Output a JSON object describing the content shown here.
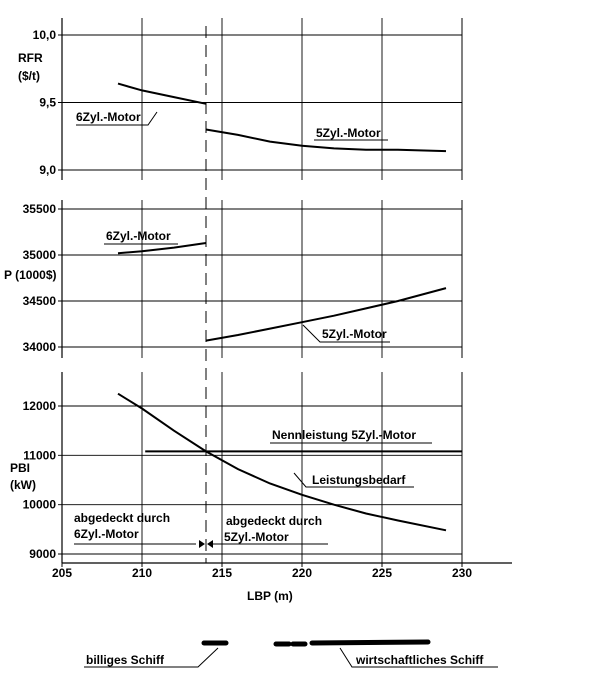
{
  "chart_data": [
    {
      "type": "line",
      "ylabel": "RFR ($/t)",
      "ylabel_lines": [
        "RFR",
        "($/t)"
      ],
      "ylim": [
        9.0,
        10.0
      ],
      "yticks": [
        "10,0",
        "9,5",
        "9,0"
      ],
      "ytick_values": [
        10.0,
        9.5,
        9.0
      ],
      "series": [
        {
          "name": "6Zyl.-Motor",
          "points": [
            [
              208.5,
              9.64
            ],
            [
              210,
              9.59
            ],
            [
              212,
              9.54
            ],
            [
              214,
              9.49
            ]
          ]
        },
        {
          "name": "5Zyl.-Motor",
          "points": [
            [
              214,
              9.3
            ],
            [
              216,
              9.26
            ],
            [
              218,
              9.21
            ],
            [
              220,
              9.18
            ],
            [
              222,
              9.16
            ],
            [
              224,
              9.15
            ],
            [
              226,
              9.15
            ],
            [
              229,
              9.14
            ]
          ]
        }
      ]
    },
    {
      "type": "line",
      "ylabel": "P (1000$)",
      "ylim": [
        33900,
        35600
      ],
      "yticks": [
        "35500",
        "35000",
        "34500",
        "34000"
      ],
      "ytick_values": [
        35500,
        35000,
        34500,
        34000
      ],
      "series": [
        {
          "name": "6Zyl.-Motor",
          "points": [
            [
              208.5,
              35020
            ],
            [
              210,
              35040
            ],
            [
              212,
              35080
            ],
            [
              214,
              35130
            ]
          ]
        },
        {
          "name": "5Zyl.-Motor",
          "points": [
            [
              214,
              34070
            ],
            [
              216,
              34130
            ],
            [
              218,
              34200
            ],
            [
              220,
              34270
            ],
            [
              222,
              34340
            ],
            [
              224,
              34420
            ],
            [
              226,
              34500
            ],
            [
              229,
              34640
            ]
          ]
        }
      ]
    },
    {
      "type": "line",
      "ylabel": "PBI (kW)",
      "ylabel_lines": [
        "PBI",
        "(kW)"
      ],
      "xlabel": "LBP (m)",
      "xlim": [
        205,
        230
      ],
      "xticks": [
        "205",
        "210",
        "215",
        "220",
        "225",
        "230"
      ],
      "xtick_values": [
        205,
        210,
        215,
        220,
        225,
        230
      ],
      "ylim": [
        9000,
        12700
      ],
      "yticks": [
        "12000",
        "11000",
        "10000",
        "9000"
      ],
      "ytick_values": [
        12000,
        11000,
        10000,
        9000
      ],
      "series": [
        {
          "name": "Nennleistung 5Zyl.-Motor",
          "points": [
            [
              210.2,
              11080
            ],
            [
              230,
              11080
            ]
          ]
        },
        {
          "name": "Leistungsbedarf",
          "points": [
            [
              208.5,
              12250
            ],
            [
              210,
              11950
            ],
            [
              212,
              11500
            ],
            [
              214,
              11080
            ],
            [
              216,
              10720
            ],
            [
              218,
              10430
            ],
            [
              220,
              10200
            ],
            [
              222,
              10000
            ],
            [
              224,
              9820
            ],
            [
              226,
              9680
            ],
            [
              229,
              9480
            ]
          ]
        }
      ],
      "annotations": {
        "region_6zyl": "abgedeckt durch 6Zyl.-Motor",
        "region_6zyl_lines": [
          "abgedeckt durch",
          "6Zyl.-Motor"
        ],
        "region_5zyl": "abgedeckt durch 5Zyl.-Motor",
        "region_5zyl_lines": [
          "abgedeckt durch",
          "5Zyl.-Motor"
        ]
      }
    }
  ],
  "split_lbp": 214,
  "legend": {
    "cheap_ship": "billiges Schiff",
    "economic_ship": "wirtschaftliches Schiff"
  }
}
